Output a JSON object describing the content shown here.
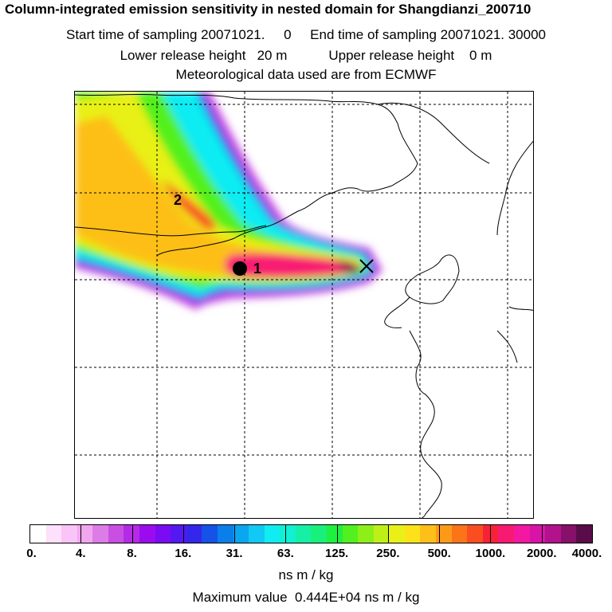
{
  "header": {
    "title": "Column-integrated emission sensitivity in nested domain for Shangdianzi_200710",
    "sampling_line": "Start time of sampling 20071021.     0     End time of sampling 20071021. 30000",
    "release_line": "Lower release height   20 m           Upper release height    0 m",
    "met_line": "Meteorological data used are from ECMWF"
  },
  "map": {
    "markers": [
      {
        "label": "1",
        "type": "receptor-dot"
      },
      {
        "label": "2",
        "type": "cluster-label"
      }
    ],
    "release_site": {
      "type": "x-mark"
    }
  },
  "colorbar": {
    "colors": [
      "#ffffff",
      "#fde0fb",
      "#f9c4f6",
      "#f2a6f0",
      "#de7ce7",
      "#c94fe3",
      "#b42be6",
      "#9a0cee",
      "#7a0bf2",
      "#5418f0",
      "#3227ea",
      "#1452e8",
      "#0a7ee9",
      "#0aa6ef",
      "#12c8f4",
      "#10ecf2",
      "#10f0d2",
      "#16f0a6",
      "#18f07a",
      "#1ef040",
      "#52f01e",
      "#8cf018",
      "#bef018",
      "#e8f018",
      "#fde21a",
      "#fdbf18",
      "#fc9a18",
      "#fb7418",
      "#f94e20",
      "#f72238",
      "#f81a72",
      "#f218a2",
      "#d814a8",
      "#b2128c",
      "#86106a",
      "#5a0c48"
    ],
    "tick_labels": [
      "0.",
      "4.",
      "8.",
      "16.",
      "31.",
      "63.",
      "125.",
      "250.",
      "500.",
      "1000.",
      "2000.",
      "4000."
    ],
    "unit": "ns m / kg",
    "max_value_text": "Maximum value  0.444E+04 ns m / kg"
  }
}
